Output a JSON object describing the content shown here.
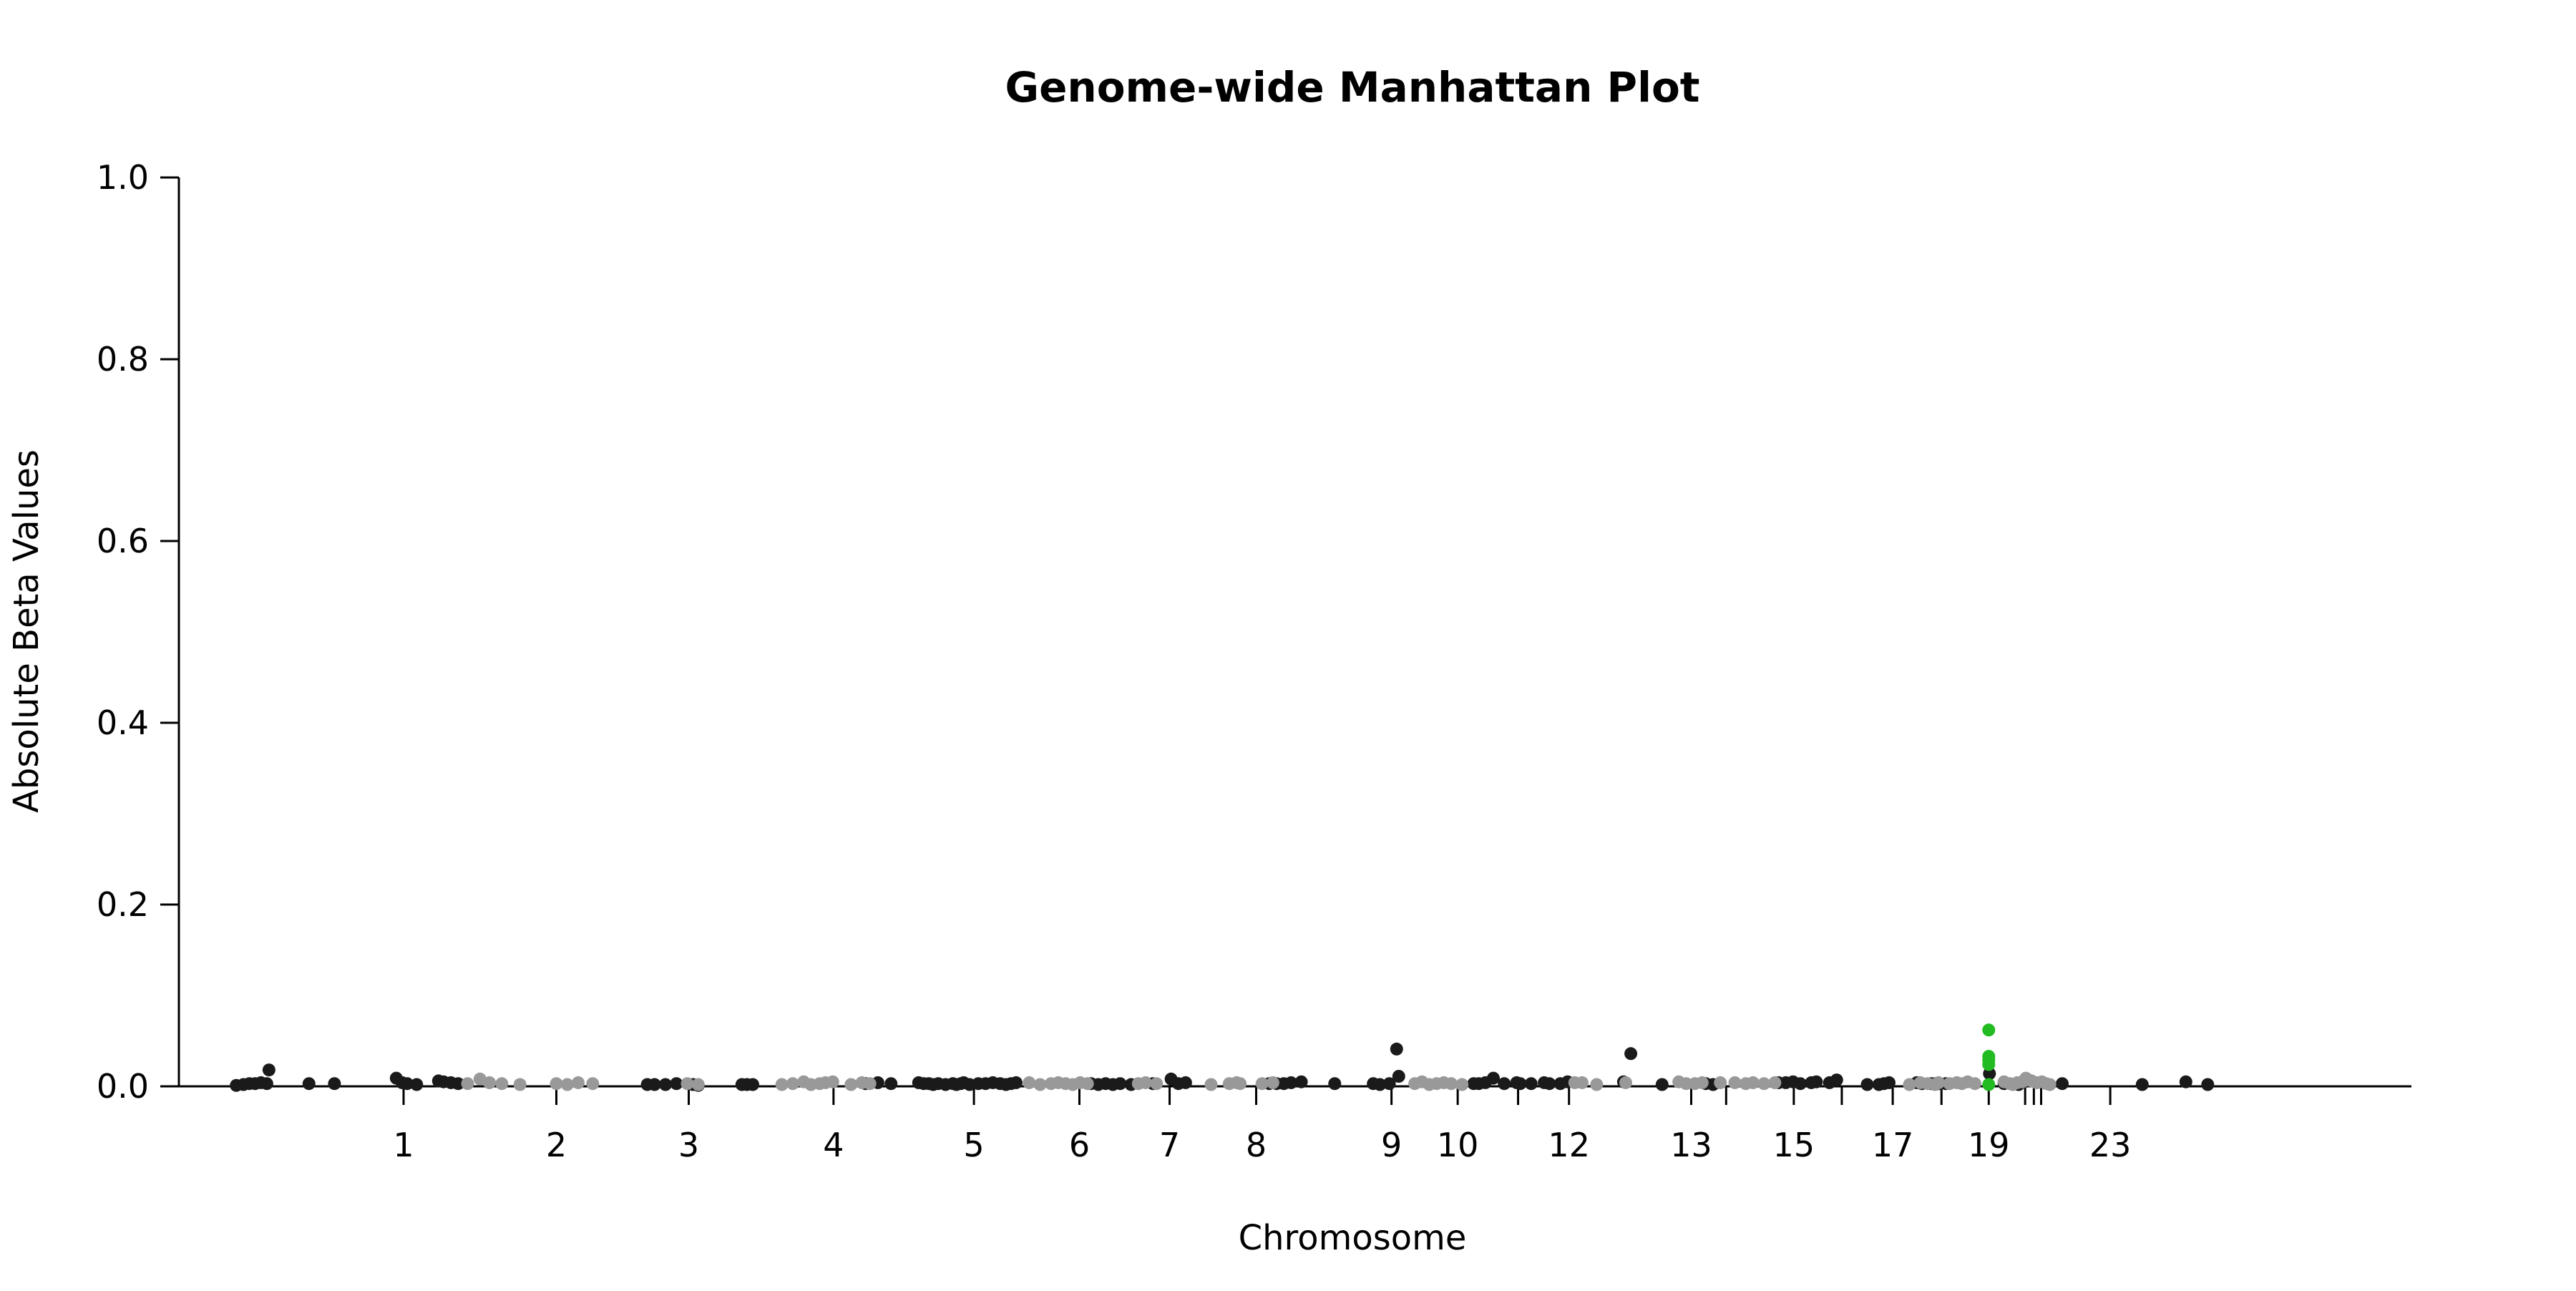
{
  "chart_data": {
    "type": "scatter",
    "title": "Genome-wide Manhattan Plot",
    "xlabel": "Chromosome",
    "ylabel": "Absolute Beta Values",
    "ylim": [
      0,
      1
    ],
    "yticks": [
      0.0,
      0.2,
      0.4,
      0.6,
      0.8,
      1.0
    ],
    "ytick_labels": [
      "0.0",
      "0.2",
      "0.4",
      "0.6",
      "0.8",
      "1.0"
    ],
    "xlim": [
      0,
      3000
    ],
    "xticks": [
      {
        "pos": 240,
        "label": "1"
      },
      {
        "pos": 450,
        "label": "2"
      },
      {
        "pos": 632,
        "label": "3"
      },
      {
        "pos": 831,
        "label": "4"
      },
      {
        "pos": 1024,
        "label": "5"
      },
      {
        "pos": 1169,
        "label": "6"
      },
      {
        "pos": 1293,
        "label": "7"
      },
      {
        "pos": 1412,
        "label": "8"
      },
      {
        "pos": 1598,
        "label": "9"
      },
      {
        "pos": 1689,
        "label": "10"
      },
      {
        "pos": 1772,
        "label": ""
      },
      {
        "pos": 1842,
        "label": "12"
      },
      {
        "pos": 2010,
        "label": "13"
      },
      {
        "pos": 2058,
        "label": ""
      },
      {
        "pos": 2151,
        "label": "15"
      },
      {
        "pos": 2217,
        "label": ""
      },
      {
        "pos": 2287,
        "label": "17"
      },
      {
        "pos": 2354,
        "label": ""
      },
      {
        "pos": 2419,
        "label": "19"
      },
      {
        "pos": 2469,
        "label": ""
      },
      {
        "pos": 2481,
        "label": ""
      },
      {
        "pos": 2491,
        "label": ""
      },
      {
        "pos": 2586,
        "label": "23"
      }
    ],
    "grid": false,
    "legend": "none",
    "colors": {
      "black": "#1a1a1a",
      "gray": "#999999",
      "green": "#22bb22"
    },
    "series": [
      {
        "color": "black",
        "x": [
          10,
          20,
          28,
          36,
          44,
          52,
          55,
          110,
          145,
          230,
          238,
          245,
          258,
          288,
          295,
          305,
          315,
          575,
          585,
          600,
          615,
          638,
          645,
          705,
          712,
          720,
          875,
          892,
          910,
          948,
          955,
          962,
          968,
          975,
          985,
          995,
          1000,
          1006,
          1010,
          1018,
          1030,
          1040,
          1050,
          1060,
          1068,
          1075,
          1082,
          1185,
          1195,
          1205,
          1215,
          1225,
          1240,
          1270,
          1295,
          1305,
          1315,
          1430,
          1440,
          1450,
          1460,
          1474,
          1520,
          1573,
          1582,
          1595,
          1605,
          1608,
          1711,
          1718,
          1727,
          1738,
          1753,
          1770,
          1775,
          1790,
          1808,
          1815,
          1830,
          1840,
          1917,
          1927,
          1970,
          2030,
          2040,
          2130,
          2140,
          2150,
          2160,
          2175,
          2182,
          2200,
          2210,
          2252,
          2268,
          2275,
          2282,
          2320,
          2327,
          2340,
          2346,
          2351,
          2360,
          2420,
          2440,
          2460,
          2520,
          2630,
          2690,
          2720
        ],
        "y": [
          0.001,
          0.002,
          0.003,
          0.003,
          0.004,
          0.003,
          0.018,
          0.003,
          0.003,
          0.009,
          0.004,
          0.003,
          0.002,
          0.006,
          0.005,
          0.004,
          0.003,
          0.002,
          0.002,
          0.002,
          0.003,
          0.002,
          0.001,
          0.002,
          0.002,
          0.002,
          0.003,
          0.004,
          0.003,
          0.004,
          0.003,
          0.003,
          0.002,
          0.003,
          0.002,
          0.003,
          0.002,
          0.003,
          0.004,
          0.002,
          0.003,
          0.003,
          0.004,
          0.003,
          0.002,
          0.003,
          0.004,
          0.003,
          0.002,
          0.003,
          0.002,
          0.003,
          0.002,
          0.003,
          0.008,
          0.003,
          0.004,
          0.003,
          0.003,
          0.003,
          0.004,
          0.005,
          0.003,
          0.003,
          0.002,
          0.003,
          0.041,
          0.011,
          0.003,
          0.003,
          0.004,
          0.009,
          0.003,
          0.004,
          0.003,
          0.003,
          0.004,
          0.003,
          0.003,
          0.005,
          0.005,
          0.036,
          0.002,
          0.003,
          0.002,
          0.004,
          0.004,
          0.005,
          0.003,
          0.004,
          0.005,
          0.004,
          0.007,
          0.002,
          0.002,
          0.003,
          0.004,
          0.004,
          0.003,
          0.003,
          0.003,
          0.003,
          0.003,
          0.014,
          0.003,
          0.002,
          0.003,
          0.002,
          0.005,
          0.002
        ]
      },
      {
        "color": "gray",
        "x": [
          328,
          345,
          358,
          375,
          400,
          450,
          465,
          480,
          500,
          630,
          645,
          760,
          775,
          790,
          800,
          812,
          820,
          830,
          855,
          870,
          881,
          1100,
          1115,
          1130,
          1140,
          1150,
          1160,
          1170,
          1180,
          1250,
          1260,
          1275,
          1350,
          1375,
          1385,
          1390,
          1420,
          1435,
          1630,
          1640,
          1650,
          1660,
          1670,
          1680,
          1695,
          1850,
          1860,
          1880,
          1920,
          1993,
          2003,
          2015,
          2025,
          2050,
          2070,
          2085,
          2095,
          2110,
          2125,
          2310,
          2325,
          2335,
          2345,
          2350,
          2365,
          2375,
          2382,
          2390,
          2400,
          2440,
          2448,
          2452,
          2458,
          2465,
          2470,
          2474,
          2478,
          2485,
          2492,
          2498,
          2503
        ],
        "y": [
          0.003,
          0.008,
          0.004,
          0.003,
          0.002,
          0.003,
          0.002,
          0.004,
          0.003,
          0.003,
          0.002,
          0.002,
          0.003,
          0.005,
          0.002,
          0.003,
          0.004,
          0.005,
          0.002,
          0.004,
          0.003,
          0.004,
          0.002,
          0.003,
          0.004,
          0.003,
          0.002,
          0.004,
          0.003,
          0.003,
          0.004,
          0.003,
          0.002,
          0.003,
          0.004,
          0.003,
          0.003,
          0.004,
          0.003,
          0.005,
          0.002,
          0.003,
          0.004,
          0.003,
          0.002,
          0.004,
          0.004,
          0.002,
          0.004,
          0.005,
          0.003,
          0.003,
          0.004,
          0.004,
          0.004,
          0.003,
          0.004,
          0.003,
          0.004,
          0.002,
          0.004,
          0.003,
          0.002,
          0.004,
          0.003,
          0.004,
          0.003,
          0.005,
          0.003,
          0.005,
          0.003,
          0.002,
          0.004,
          0.005,
          0.009,
          0.007,
          0.006,
          0.004,
          0.005,
          0.003,
          0.002
        ]
      },
      {
        "color": "green",
        "x": [
          2419,
          2419,
          2419,
          2419,
          2419
        ],
        "y": [
          0.062,
          0.033,
          0.029,
          0.024,
          0.002
        ]
      }
    ]
  }
}
